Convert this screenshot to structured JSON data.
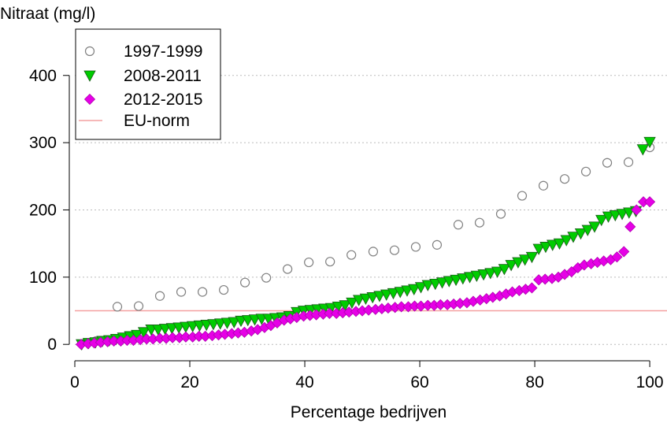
{
  "chart_data": {
    "type": "scatter",
    "title": "",
    "ylabel": "Nitraat (mg/l)",
    "xlabel": "Percentage bedrijven",
    "xlim": [
      0,
      103
    ],
    "ylim": [
      -15,
      470
    ],
    "xticks": [
      0,
      20,
      40,
      60,
      80,
      100
    ],
    "yticks": [
      0,
      100,
      200,
      300,
      400
    ],
    "grid": "horizontal dotted",
    "legend_position": "top-left",
    "colors": {
      "s1997": "#808080",
      "s2008_fill": "#00cc00",
      "s2012_fill": "#e600e6",
      "eu_norm": "#f4a0a0",
      "grid": "#bbbbbb",
      "axis": "#000000"
    },
    "reference_line": {
      "name": "EU-norm",
      "y": 50
    },
    "series": [
      {
        "name": "1997-1999",
        "marker": "open-circle",
        "x": [
          3.7,
          7.4,
          11.1,
          14.8,
          18.5,
          22.2,
          25.9,
          29.6,
          33.3,
          37.0,
          40.7,
          44.4,
          48.1,
          51.9,
          55.6,
          59.3,
          63.0,
          66.7,
          70.4,
          74.1,
          77.8,
          81.5,
          85.2,
          88.9,
          92.6,
          96.3,
          100.0
        ],
        "y": [
          5,
          56,
          57,
          72,
          78,
          78,
          81,
          92,
          99,
          112,
          122,
          123,
          133,
          138,
          140,
          145,
          148,
          178,
          181,
          194,
          221,
          236,
          246,
          257,
          270,
          271,
          293
        ]
      },
      {
        "name": "2008-2011",
        "marker": "triangle-down",
        "x": [
          1.2,
          2.4,
          3.6,
          4.8,
          6.0,
          7.2,
          8.4,
          9.6,
          10.8,
          12.0,
          13.3,
          14.5,
          15.7,
          16.9,
          18.1,
          19.3,
          20.5,
          21.7,
          22.9,
          24.1,
          25.3,
          26.5,
          27.7,
          28.9,
          30.1,
          31.3,
          32.5,
          33.7,
          34.9,
          36.1,
          37.3,
          38.6,
          39.8,
          41.0,
          42.2,
          43.4,
          44.6,
          45.8,
          47.0,
          48.2,
          49.4,
          50.6,
          51.8,
          53.0,
          54.2,
          55.4,
          56.6,
          57.8,
          59.0,
          60.2,
          61.4,
          62.7,
          63.9,
          65.1,
          66.3,
          67.5,
          68.7,
          69.9,
          71.1,
          72.3,
          73.5,
          74.7,
          75.9,
          77.1,
          78.3,
          79.5,
          80.7,
          81.9,
          83.1,
          84.3,
          85.5,
          86.7,
          88.0,
          89.2,
          90.4,
          91.6,
          92.8,
          94.0,
          95.2,
          96.4,
          97.6,
          98.8,
          100.0
        ],
        "y": [
          0,
          2,
          3,
          5,
          6,
          8,
          10,
          12,
          14,
          18,
          22,
          22,
          23,
          24,
          25,
          26,
          27,
          28,
          29,
          30,
          31,
          32,
          33,
          35,
          36,
          37,
          38,
          38,
          39,
          40,
          42,
          48,
          50,
          51,
          52,
          53,
          54,
          56,
          58,
          62,
          66,
          68,
          70,
          72,
          74,
          76,
          78,
          80,
          82,
          85,
          88,
          90,
          92,
          94,
          96,
          98,
          100,
          102,
          104,
          106,
          108,
          112,
          118,
          122,
          126,
          130,
          142,
          145,
          148,
          150,
          155,
          160,
          165,
          170,
          175,
          185,
          190,
          192,
          194,
          196,
          198,
          290,
          301
        ]
      },
      {
        "name": "2012-2015",
        "marker": "diamond",
        "x": [
          1.1,
          2.3,
          3.4,
          4.5,
          5.7,
          6.8,
          8.0,
          9.1,
          10.2,
          11.4,
          12.5,
          13.6,
          14.8,
          15.9,
          17.0,
          18.2,
          19.3,
          20.5,
          21.6,
          22.7,
          23.9,
          25.0,
          26.1,
          27.3,
          28.4,
          29.5,
          30.7,
          31.8,
          33.0,
          34.1,
          35.2,
          36.4,
          37.5,
          38.6,
          39.8,
          40.9,
          42.0,
          43.2,
          44.3,
          45.5,
          46.6,
          47.7,
          48.9,
          50.0,
          51.1,
          52.3,
          53.4,
          54.5,
          55.7,
          56.8,
          58.0,
          59.1,
          60.2,
          61.4,
          62.5,
          63.6,
          64.8,
          65.9,
          67.0,
          68.2,
          69.3,
          70.5,
          71.6,
          72.7,
          73.9,
          75.0,
          76.1,
          77.3,
          78.4,
          79.5,
          80.7,
          81.8,
          83.0,
          84.1,
          85.2,
          86.4,
          87.5,
          88.6,
          89.8,
          90.9,
          92.0,
          93.2,
          94.3,
          95.5,
          96.6,
          97.7,
          98.9,
          100.0
        ],
        "y": [
          0,
          1,
          2,
          3,
          4,
          5,
          5,
          6,
          6,
          7,
          8,
          8,
          9,
          9,
          10,
          10,
          11,
          11,
          12,
          12,
          13,
          14,
          15,
          16,
          17,
          18,
          20,
          22,
          25,
          28,
          32,
          36,
          38,
          40,
          42,
          43,
          44,
          45,
          46,
          46,
          47,
          48,
          49,
          50,
          51,
          52,
          53,
          54,
          55,
          56,
          56,
          57,
          57,
          58,
          58,
          59,
          59,
          60,
          61,
          62,
          64,
          66,
          68,
          70,
          72,
          75,
          78,
          80,
          82,
          84,
          96,
          97,
          98,
          100,
          104,
          108,
          114,
          118,
          120,
          122,
          124,
          126,
          130,
          138,
          175,
          200,
          212,
          212
        ]
      }
    ]
  }
}
